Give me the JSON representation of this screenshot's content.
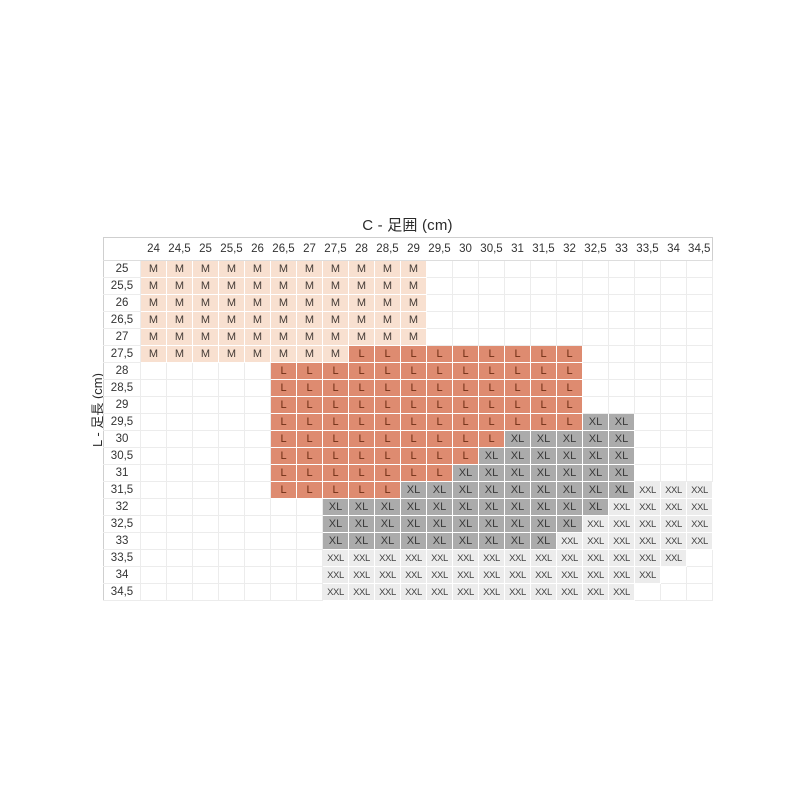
{
  "chart_data": {
    "type": "heatmap",
    "title": "C - 足囲 (cm)",
    "ylabel": "L - 足長 (cm)",
    "legend_position": "none",
    "grid": true,
    "columns": [
      "24",
      "24,5",
      "25",
      "25,5",
      "26",
      "26,5",
      "27",
      "27,5",
      "28",
      "28,5",
      "29",
      "29,5",
      "30",
      "30,5",
      "31",
      "31,5",
      "32",
      "32,5",
      "33",
      "33,5",
      "34",
      "34,5"
    ],
    "rows": [
      "25",
      "25,5",
      "26",
      "26,5",
      "27",
      "27,5",
      "28",
      "28,5",
      "29",
      "29,5",
      "30",
      "30,5",
      "31",
      "31,5",
      "32",
      "32,5",
      "33",
      "33,5",
      "34",
      "34,5"
    ],
    "values": [
      [
        "M",
        "M",
        "M",
        "M",
        "M",
        "M",
        "M",
        "M",
        "M",
        "M",
        "M",
        "",
        "",
        "",
        "",
        "",
        "",
        "",
        "",
        "",
        "",
        ""
      ],
      [
        "M",
        "M",
        "M",
        "M",
        "M",
        "M",
        "M",
        "M",
        "M",
        "M",
        "M",
        "",
        "",
        "",
        "",
        "",
        "",
        "",
        "",
        "",
        "",
        ""
      ],
      [
        "M",
        "M",
        "M",
        "M",
        "M",
        "M",
        "M",
        "M",
        "M",
        "M",
        "M",
        "",
        "",
        "",
        "",
        "",
        "",
        "",
        "",
        "",
        "",
        ""
      ],
      [
        "M",
        "M",
        "M",
        "M",
        "M",
        "M",
        "M",
        "M",
        "M",
        "M",
        "M",
        "",
        "",
        "",
        "",
        "",
        "",
        "",
        "",
        "",
        "",
        ""
      ],
      [
        "M",
        "M",
        "M",
        "M",
        "M",
        "M",
        "M",
        "M",
        "M",
        "M",
        "M",
        "",
        "",
        "",
        "",
        "",
        "",
        "",
        "",
        "",
        "",
        ""
      ],
      [
        "M",
        "M",
        "M",
        "M",
        "M",
        "M",
        "M",
        "M",
        "L",
        "L",
        "L",
        "L",
        "L",
        "L",
        "L",
        "L",
        "L",
        "",
        "",
        "",
        "",
        ""
      ],
      [
        "",
        "",
        "",
        "",
        "",
        "L",
        "L",
        "L",
        "L",
        "L",
        "L",
        "L",
        "L",
        "L",
        "L",
        "L",
        "L",
        "",
        "",
        "",
        "",
        ""
      ],
      [
        "",
        "",
        "",
        "",
        "",
        "L",
        "L",
        "L",
        "L",
        "L",
        "L",
        "L",
        "L",
        "L",
        "L",
        "L",
        "L",
        "",
        "",
        "",
        "",
        ""
      ],
      [
        "",
        "",
        "",
        "",
        "",
        "L",
        "L",
        "L",
        "L",
        "L",
        "L",
        "L",
        "L",
        "L",
        "L",
        "L",
        "L",
        "",
        "",
        "",
        "",
        ""
      ],
      [
        "",
        "",
        "",
        "",
        "",
        "L",
        "L",
        "L",
        "L",
        "L",
        "L",
        "L",
        "L",
        "L",
        "L",
        "L",
        "L",
        "XL",
        "XL",
        "",
        "",
        ""
      ],
      [
        "",
        "",
        "",
        "",
        "",
        "L",
        "L",
        "L",
        "L",
        "L",
        "L",
        "L",
        "L",
        "L",
        "XL",
        "XL",
        "XL",
        "XL",
        "XL",
        "",
        "",
        ""
      ],
      [
        "",
        "",
        "",
        "",
        "",
        "L",
        "L",
        "L",
        "L",
        "L",
        "L",
        "L",
        "L",
        "XL",
        "XL",
        "XL",
        "XL",
        "XL",
        "XL",
        "",
        "",
        ""
      ],
      [
        "",
        "",
        "",
        "",
        "",
        "L",
        "L",
        "L",
        "L",
        "L",
        "L",
        "L",
        "XL",
        "XL",
        "XL",
        "XL",
        "XL",
        "XL",
        "XL",
        "",
        "",
        ""
      ],
      [
        "",
        "",
        "",
        "",
        "",
        "L",
        "L",
        "L",
        "L",
        "L",
        "XL",
        "XL",
        "XL",
        "XL",
        "XL",
        "XL",
        "XL",
        "XL",
        "XL",
        "XXL",
        "XXL",
        "XXL"
      ],
      [
        "",
        "",
        "",
        "",
        "",
        "",
        "",
        "XL",
        "XL",
        "XL",
        "XL",
        "XL",
        "XL",
        "XL",
        "XL",
        "XL",
        "XL",
        "XL",
        "XXL",
        "XXL",
        "XXL",
        "XXL"
      ],
      [
        "",
        "",
        "",
        "",
        "",
        "",
        "",
        "XL",
        "XL",
        "XL",
        "XL",
        "XL",
        "XL",
        "XL",
        "XL",
        "XL",
        "XL",
        "XXL",
        "XXL",
        "XXL",
        "XXL",
        "XXL"
      ],
      [
        "",
        "",
        "",
        "",
        "",
        "",
        "",
        "XL",
        "XL",
        "XL",
        "XL",
        "XL",
        "XL",
        "XL",
        "XL",
        "XL",
        "XXL",
        "XXL",
        "XXL",
        "XXL",
        "XXL",
        "XXL"
      ],
      [
        "",
        "",
        "",
        "",
        "",
        "",
        "",
        "XXL",
        "XXL",
        "XXL",
        "XXL",
        "XXL",
        "XXL",
        "XXL",
        "XXL",
        "XXL",
        "XXL",
        "XXL",
        "XXL",
        "XXL",
        "XXL",
        ""
      ],
      [
        "",
        "",
        "",
        "",
        "",
        "",
        "",
        "XXL",
        "XXL",
        "XXL",
        "XXL",
        "XXL",
        "XXL",
        "XXL",
        "XXL",
        "XXL",
        "XXL",
        "XXL",
        "XXL",
        "XXL",
        "",
        ""
      ],
      [
        "",
        "",
        "",
        "",
        "",
        "",
        "",
        "XXL",
        "XXL",
        "XXL",
        "XXL",
        "XXL",
        "XXL",
        "XXL",
        "XXL",
        "XXL",
        "XXL",
        "XXL",
        "XXL",
        "",
        "",
        ""
      ]
    ],
    "colors": {
      "M": {
        "bg": "#f8e0d0",
        "fg": "#433a35"
      },
      "L": {
        "bg": "#de8b70",
        "fg": "#6f2e14"
      },
      "XL": {
        "bg": "#ababab",
        "fg": "#3a3a3a"
      },
      "XXL": {
        "bg": "#ececec",
        "fg": "#434343"
      }
    },
    "style": {
      "outer_border": "#cfcfcf",
      "grid_line": "#ececec",
      "header_underline": "#dddddd",
      "background": "#ffffff"
    }
  }
}
